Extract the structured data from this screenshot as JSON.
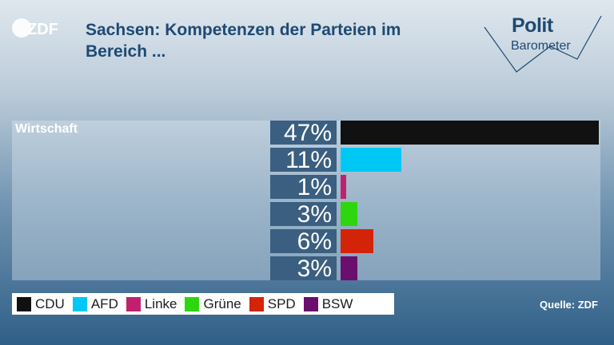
{
  "header": {
    "logo_text": "ZDF",
    "title": "Sachsen: Kompetenzen der Parteien im Bereich ...",
    "brand_line1": "Polit",
    "brand_line2": "Barometer"
  },
  "colors": {
    "title": "#1d4a73",
    "value_box": "#3a5f80"
  },
  "chart_data": {
    "type": "bar",
    "orientation": "horizontal",
    "category": "Wirtschaft",
    "unit": "%",
    "xlim": [
      0,
      47
    ],
    "bars": [
      {
        "party": "CDU",
        "value": 47,
        "label": "47%",
        "color": "#111111"
      },
      {
        "party": "AFD",
        "value": 11,
        "label": "11%",
        "color": "#00c8f5"
      },
      {
        "party": "Linke",
        "value": 1,
        "label": "1%",
        "color": "#c0216e"
      },
      {
        "party": "Grüne",
        "value": 3,
        "label": "3%",
        "color": "#2ed60f"
      },
      {
        "party": "SPD",
        "value": 6,
        "label": "6%",
        "color": "#d42408"
      },
      {
        "party": "BSW",
        "value": 3,
        "label": "3%",
        "color": "#6a0f6e"
      }
    ]
  },
  "footer": {
    "source": "Quelle: ZDF"
  }
}
